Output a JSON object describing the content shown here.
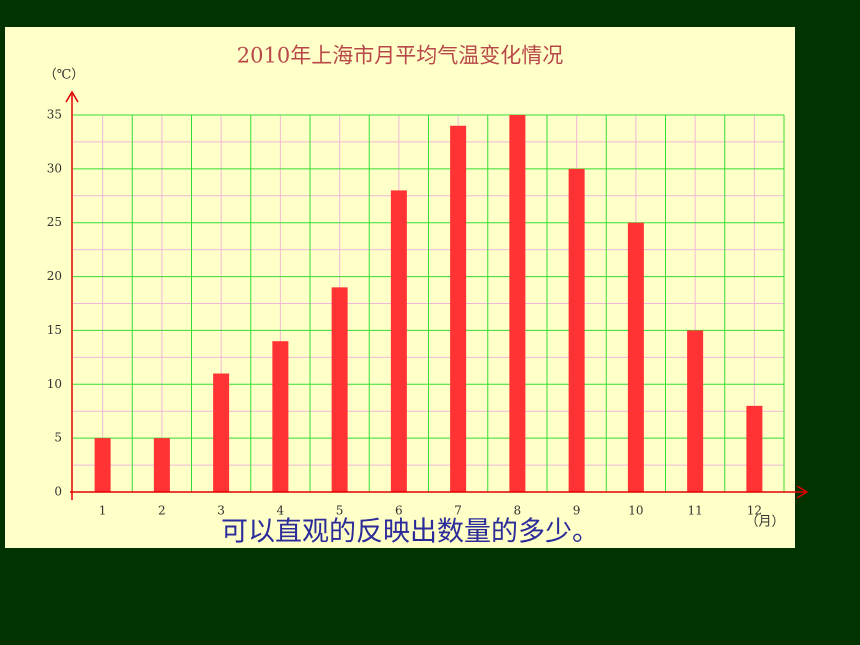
{
  "chart_data": {
    "type": "bar",
    "title": "2010年上海市月平均气温变化情况",
    "y_label": "（℃）",
    "x_label": "（月）",
    "categories": [
      "1",
      "2",
      "3",
      "4",
      "5",
      "6",
      "7",
      "8",
      "9",
      "10",
      "11",
      "12"
    ],
    "values": [
      5,
      5,
      11,
      14,
      19,
      28,
      34,
      35,
      30,
      25,
      15,
      8
    ],
    "color": "#ff3333",
    "ylim": [
      0,
      35
    ],
    "yticks": [
      0,
      5,
      10,
      15,
      20,
      25,
      30,
      35
    ],
    "grid": true,
    "annotation": "可以直观的反映出数量的多少。"
  }
}
